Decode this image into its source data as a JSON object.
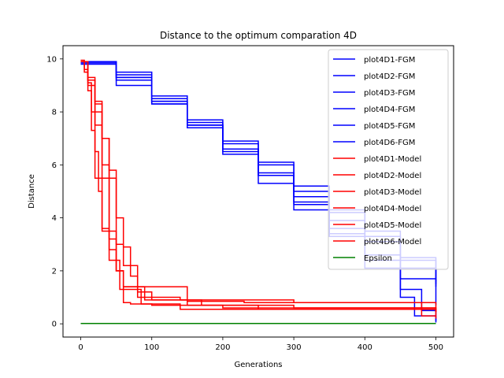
{
  "chart_data": {
    "type": "line",
    "title": "Distance to the optimum comparation 4D",
    "xlabel": "Generations",
    "ylabel": "Distance",
    "xlim": [
      -25,
      525
    ],
    "ylim": [
      -0.5,
      10.5
    ],
    "xticks": [
      0,
      100,
      200,
      300,
      400,
      500
    ],
    "yticks": [
      0,
      2,
      4,
      6,
      8,
      10
    ],
    "grid": false,
    "legend_position": "top-right",
    "colors": {
      "fgm": "#0000ff",
      "model": "#ff0000",
      "epsilon": "#008000"
    },
    "series": [
      {
        "name": "plot4D1-FGM",
        "color": "#0000ff",
        "x": [
          0,
          50,
          100,
          150,
          200,
          250,
          300,
          350,
          400,
          450,
          500
        ],
        "y": [
          9.9,
          9.3,
          8.4,
          7.6,
          6.8,
          6.0,
          5.0,
          4.2,
          3.3,
          2.4,
          1.6
        ]
      },
      {
        "name": "plot4D2-FGM",
        "color": "#0000ff",
        "x": [
          0,
          50,
          100,
          150,
          200,
          250,
          300,
          350,
          400,
          450,
          500
        ],
        "y": [
          9.85,
          9.2,
          8.3,
          7.4,
          6.6,
          5.7,
          4.8,
          3.9,
          3.1,
          2.1,
          1.4
        ]
      },
      {
        "name": "plot4D3-FGM",
        "color": "#0000ff",
        "x": [
          0,
          50,
          100,
          150,
          200,
          250,
          300,
          350,
          400,
          450,
          500
        ],
        "y": [
          9.9,
          9.4,
          8.5,
          7.5,
          6.5,
          5.6,
          4.6,
          3.6,
          2.6,
          1.7,
          0.7
        ]
      },
      {
        "name": "plot4D4-FGM",
        "color": "#0000ff",
        "x": [
          0,
          50,
          100,
          150,
          200,
          250,
          300,
          350,
          400,
          450,
          470,
          500
        ],
        "y": [
          9.8,
          9.0,
          8.3,
          7.5,
          6.4,
          5.3,
          4.3,
          3.3,
          2.1,
          1.0,
          0.3,
          0.05
        ]
      },
      {
        "name": "plot4D5-FGM",
        "color": "#0000ff",
        "x": [
          0,
          50,
          100,
          150,
          200,
          250,
          300,
          350,
          400,
          450,
          500
        ],
        "y": [
          9.9,
          9.5,
          8.6,
          7.7,
          6.9,
          6.1,
          5.2,
          4.3,
          3.5,
          2.5,
          1.5
        ]
      },
      {
        "name": "plot4D6-FGM",
        "color": "#0000ff",
        "x": [
          0,
          50,
          100,
          150,
          200,
          250,
          300,
          350,
          400,
          450,
          480,
          500
        ],
        "y": [
          9.9,
          9.3,
          8.4,
          7.5,
          6.6,
          5.6,
          4.5,
          3.4,
          2.4,
          1.3,
          0.5,
          0.1
        ]
      },
      {
        "name": "plot4D1-Model",
        "color": "#ff0000",
        "x": [
          0,
          5,
          10,
          15,
          20,
          25,
          30,
          40,
          50,
          60,
          90,
          170,
          250,
          500
        ],
        "y": [
          9.95,
          9.6,
          9.1,
          8.0,
          6.5,
          5.0,
          3.6,
          2.8,
          2.0,
          1.4,
          0.9,
          0.7,
          0.55,
          0.45
        ]
      },
      {
        "name": "plot4D2-Model",
        "color": "#ff0000",
        "x": [
          0,
          5,
          10,
          15,
          20,
          30,
          40,
          55,
          85,
          140,
          500
        ],
        "y": [
          9.9,
          9.5,
          8.8,
          7.3,
          5.5,
          3.5,
          2.4,
          1.3,
          0.75,
          0.55,
          0.45
        ]
      },
      {
        "name": "plot4D3-Model",
        "color": "#ff0000",
        "x": [
          0,
          10,
          20,
          30,
          40,
          50,
          60,
          80,
          140,
          300,
          500
        ],
        "y": [
          9.9,
          9.0,
          7.5,
          5.5,
          3.5,
          2.0,
          1.4,
          1.0,
          0.9,
          0.8,
          0.2
        ]
      },
      {
        "name": "plot4D4-Model",
        "color": "#ff0000",
        "x": [
          0,
          10,
          20,
          30,
          40,
          50,
          60,
          70,
          80,
          150,
          300,
          500
        ],
        "y": [
          9.9,
          9.2,
          8.4,
          7.0,
          5.8,
          4.0,
          2.9,
          1.8,
          1.4,
          0.7,
          0.6,
          0.55
        ]
      },
      {
        "name": "plot4D5-Model",
        "color": "#ff0000",
        "x": [
          0,
          10,
          20,
          30,
          40,
          50,
          60,
          70,
          100,
          200,
          500
        ],
        "y": [
          9.9,
          9.3,
          8.0,
          6.0,
          3.2,
          2.0,
          0.8,
          0.75,
          0.7,
          0.6,
          0.45
        ]
      },
      {
        "name": "plot4D6-Model",
        "color": "#ff0000",
        "x": [
          0,
          10,
          20,
          30,
          40,
          50,
          60,
          80,
          100,
          150,
          230,
          330,
          430,
          470,
          480,
          500
        ],
        "y": [
          9.9,
          9.2,
          8.3,
          7.0,
          5.5,
          3.0,
          2.2,
          1.2,
          0.9,
          0.85,
          0.8,
          0.8,
          0.8,
          0.8,
          0.3,
          0.3
        ]
      },
      {
        "name": "Epsilon",
        "color": "#008000",
        "x": [
          0,
          500
        ],
        "y": [
          0.01,
          0.01
        ]
      }
    ]
  }
}
